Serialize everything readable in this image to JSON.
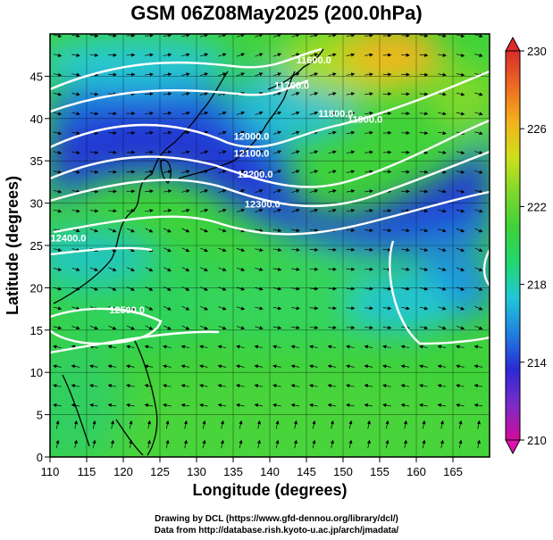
{
  "title": "GSM 06Z08May2025 (200.0hPa)",
  "x_axis": {
    "label": "Longitude (degrees)",
    "min": 110,
    "max": 170,
    "ticks": [
      "110",
      "115",
      "120",
      "125",
      "130",
      "135",
      "140",
      "145",
      "150",
      "155",
      "160",
      "165"
    ]
  },
  "y_axis": {
    "label": "Latitude  (degrees)",
    "min": 0,
    "max": 50,
    "ticks": [
      "0",
      "5",
      "10",
      "15",
      "20",
      "25",
      "30",
      "35",
      "40",
      "45"
    ]
  },
  "colorbar": {
    "min": 210,
    "max": 230,
    "labels": [
      "210",
      "214",
      "218",
      "222",
      "226",
      "230"
    ],
    "colors": [
      "#d40a9a",
      "#7b2cc8",
      "#2a2ad6",
      "#1f7fe0",
      "#21c6d8",
      "#20d870",
      "#3ed13a",
      "#7fd82c",
      "#cfe01a",
      "#f3b11c",
      "#ee6a22",
      "#d92c2c"
    ]
  },
  "contours": [
    {
      "label": "11600.0",
      "lon": 146,
      "lat": 46.5
    },
    {
      "label": "11700.0",
      "lon": 143,
      "lat": 43.5
    },
    {
      "label": "11800.0",
      "lon": 149,
      "lat": 40.2
    },
    {
      "label": "11900.0",
      "lon": 153,
      "lat": 39.5
    },
    {
      "label": "12000.0",
      "lon": 137.5,
      "lat": 37.5
    },
    {
      "label": "12100.0",
      "lon": 137.5,
      "lat": 35.5
    },
    {
      "label": "12200.0",
      "lon": 138,
      "lat": 33
    },
    {
      "label": "12300.0",
      "lon": 139,
      "lat": 29.5
    },
    {
      "label": "12400.0",
      "lon": 112.5,
      "lat": 25.5
    },
    {
      "label": "12500.0",
      "lon": 120.5,
      "lat": 17
    }
  ],
  "credits": [
    "Drawing by DCL (https://www.gfd-dennou.org/library/dcl/)",
    "Data from http://database.rish.kyoto-u.ac.jp/arch/jmadata/"
  ]
}
